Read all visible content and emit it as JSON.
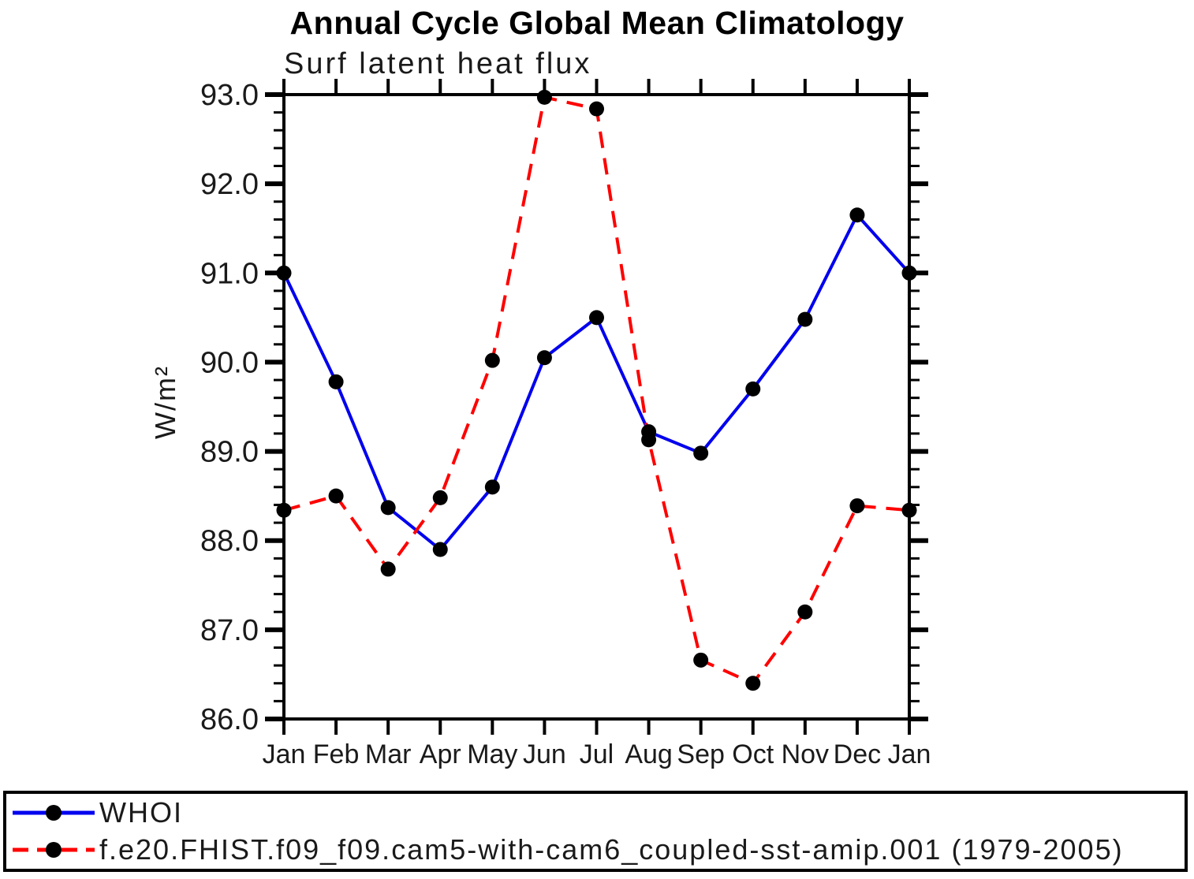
{
  "chart": {
    "title": "Annual Cycle Global Mean Climatology",
    "subtitle": "Surf latent heat flux",
    "ylabel": "W/m²"
  },
  "legend": {
    "items": [
      {
        "label": "WHOI",
        "line_color": "#0000ee",
        "line_style": "solid",
        "marker": "black-dot"
      },
      {
        "label": "f.e20.FHIST.f09_f09.cam5-with-cam6_coupled-sst-amip.001 (1979-2005)",
        "line_color": "#ff0000",
        "line_style": "dashed",
        "marker": "black-dot"
      }
    ]
  },
  "chart_data": {
    "type": "line",
    "title": "Annual Cycle Global Mean Climatology",
    "subtitle": "Surf latent heat flux",
    "xlabel": "",
    "ylabel": "W/m²",
    "categories": [
      "Jan",
      "Feb",
      "Mar",
      "Apr",
      "May",
      "Jun",
      "Jul",
      "Aug",
      "Sep",
      "Oct",
      "Nov",
      "Dec",
      "Jan"
    ],
    "ylim": [
      86.0,
      93.0
    ],
    "ytick_interval": 1.0,
    "yminor_interval": 0.2,
    "ytick_labels": [
      "86.0",
      "87.0",
      "88.0",
      "89.0",
      "90.0",
      "91.0",
      "92.0",
      "93.0"
    ],
    "grid": false,
    "legend_position": "bottom",
    "marker_color": "#000000",
    "series": [
      {
        "name": "WHOI",
        "color": "#0000ee",
        "style": "solid",
        "values": [
          91.0,
          89.78,
          88.37,
          87.9,
          88.6,
          90.05,
          90.5,
          89.22,
          88.98,
          89.7,
          90.48,
          91.65,
          91.0
        ]
      },
      {
        "name": "f.e20.FHIST.f09_f09.cam5-with-cam6_coupled-sst-amip.001 (1979-2005)",
        "color": "#ff0000",
        "style": "dashed",
        "values": [
          88.34,
          88.5,
          87.68,
          88.48,
          90.02,
          92.97,
          92.84,
          89.13,
          86.66,
          86.4,
          87.2,
          88.39,
          88.34
        ]
      }
    ]
  }
}
